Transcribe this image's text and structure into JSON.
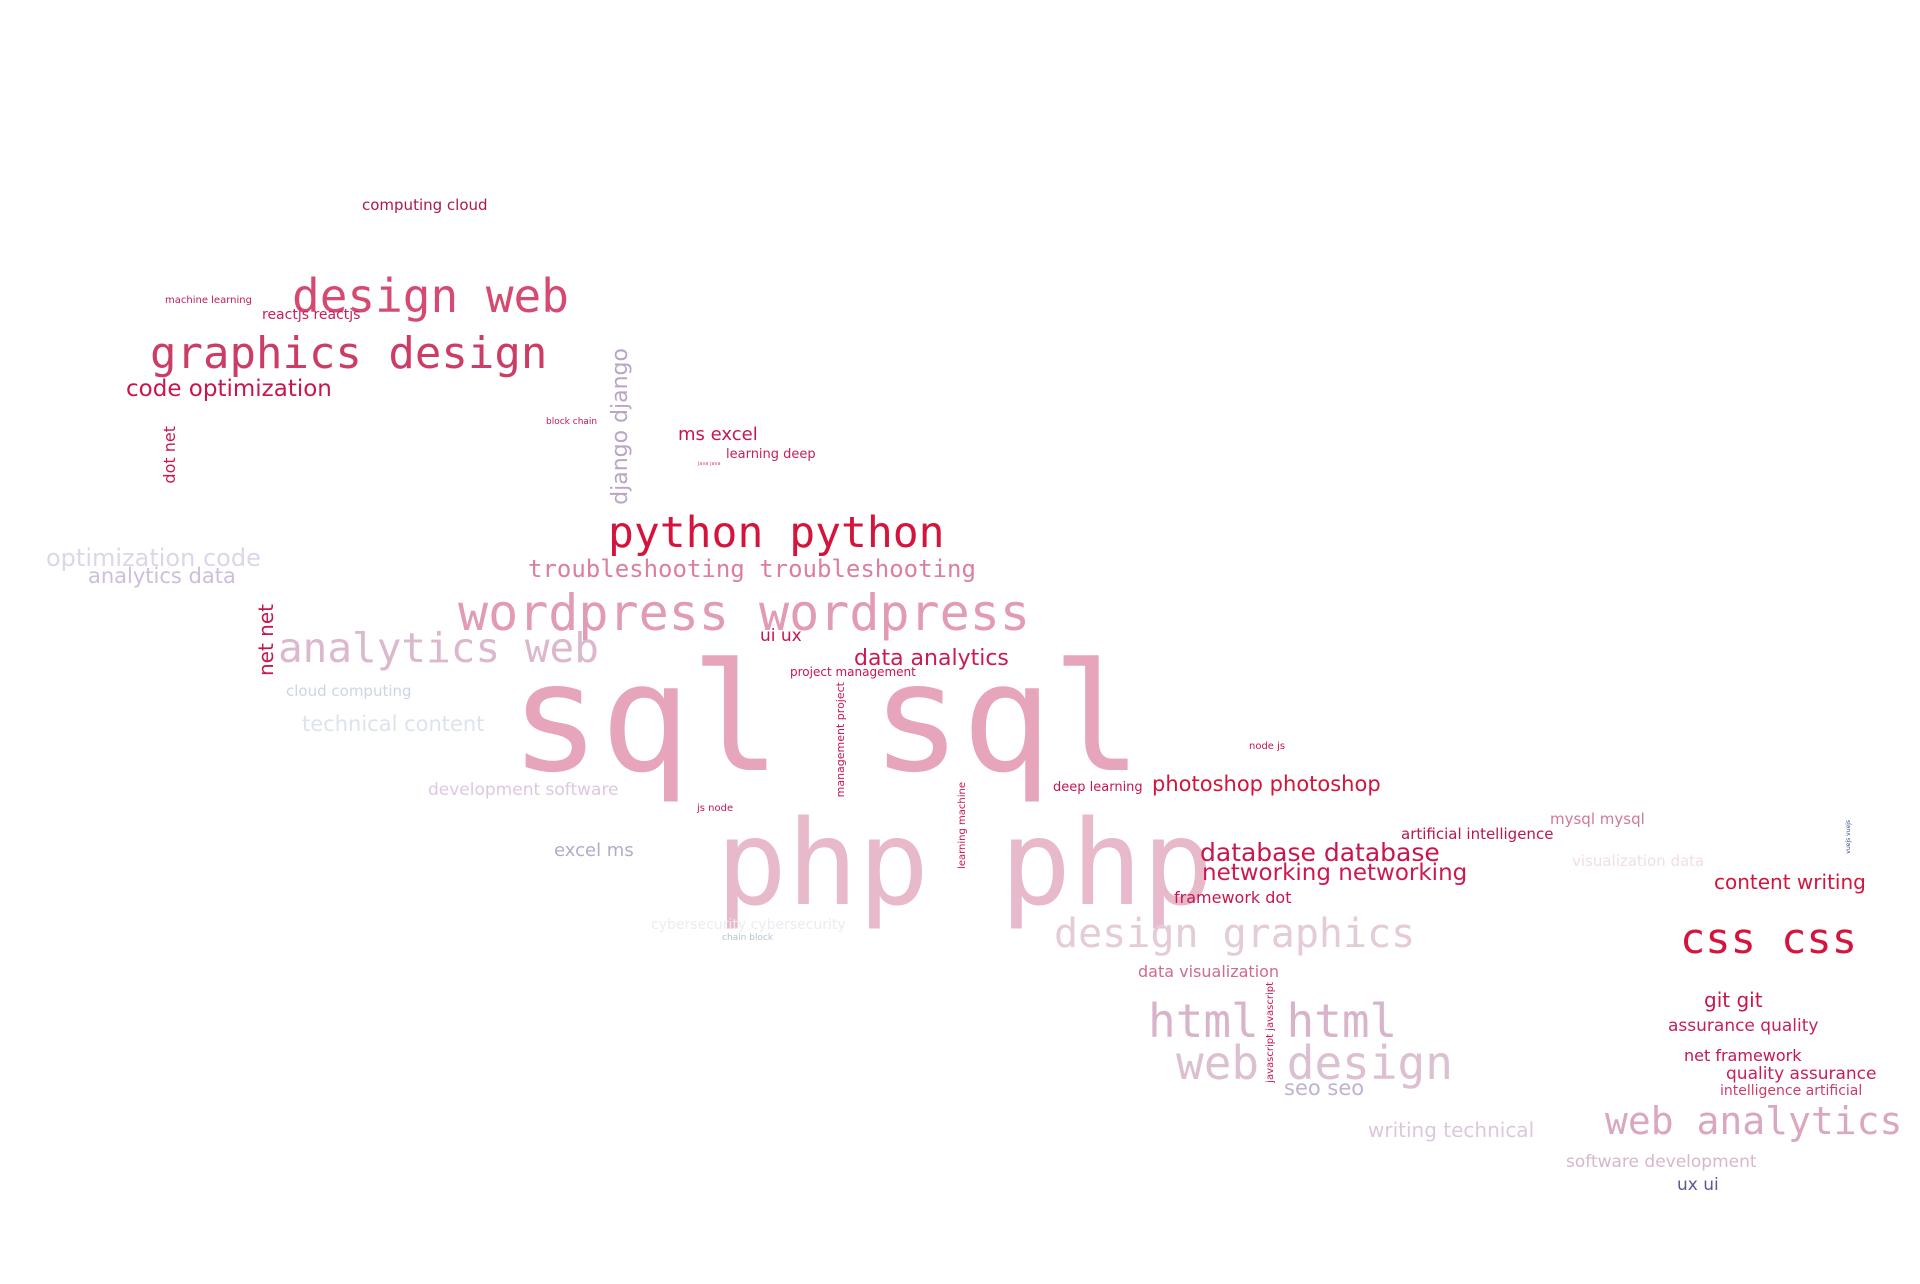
{
  "words": [
    {
      "id": "computing-cloud",
      "text": "computing cloud",
      "color": "#b0164a"
    },
    {
      "id": "machine-learning",
      "text": "machine learning",
      "color": "#c2185b"
    },
    {
      "id": "design-web",
      "text": "design web",
      "color": "#d64a72"
    },
    {
      "id": "reactjs-reactjs",
      "text": "reactjs reactjs",
      "color": "#c81e5a"
    },
    {
      "id": "graphics-design",
      "text": "graphics design",
      "color": "#cc3d66"
    },
    {
      "id": "code-optimization",
      "text": "code optimization",
      "color": "#c8164c"
    },
    {
      "id": "dot-net",
      "text": "dot net",
      "color": "#c8164c"
    },
    {
      "id": "block-chain",
      "text": "block chain",
      "color": "#c8164c"
    },
    {
      "id": "django-django",
      "text": "django django",
      "color": "#b9a5c6"
    },
    {
      "id": "ms-excel",
      "text": "ms excel",
      "color": "#c8164c"
    },
    {
      "id": "learning-deep",
      "text": "learning deep",
      "color": "#c81e5a"
    },
    {
      "id": "java-java",
      "text": "java java",
      "color": "#d64a72"
    },
    {
      "id": "python-python",
      "text": "python python",
      "color": "#d4143c"
    },
    {
      "id": "optimization-code",
      "text": "optimization code",
      "color": "#ddd5ea"
    },
    {
      "id": "analytics-data",
      "text": "analytics data",
      "color": "#cdbedc"
    },
    {
      "id": "troubleshooting-troubleshooting",
      "text": "troubleshooting troubleshooting",
      "color": "#dc7f9c"
    },
    {
      "id": "wordpress-wordpress",
      "text": "wordpress wordpress",
      "color": "#e29bb4"
    },
    {
      "id": "net-net",
      "text": "net net",
      "color": "#c8164c"
    },
    {
      "id": "analytics-web",
      "text": "analytics web",
      "color": "#dcb8cf"
    },
    {
      "id": "ui-ux",
      "text": "ui ux",
      "color": "#c8164c"
    },
    {
      "id": "data-analytics",
      "text": "data analytics",
      "color": "#cc1a50"
    },
    {
      "id": "project-management",
      "text": "project management",
      "color": "#c8164c"
    },
    {
      "id": "cloud-computing",
      "text": "cloud computing",
      "color": "#cad6e6"
    },
    {
      "id": "sql-sql",
      "text": "sql sql",
      "color": "#e6a5ba"
    },
    {
      "id": "management-project",
      "text": "management project",
      "color": "#c8164c"
    },
    {
      "id": "technical-content",
      "text": "technical content",
      "color": "#dde3ee"
    },
    {
      "id": "node-js",
      "text": "node js",
      "color": "#c8164c"
    },
    {
      "id": "development-software",
      "text": "development software",
      "color": "#dcc8e0"
    },
    {
      "id": "deep-learning",
      "text": "deep learning",
      "color": "#c8164c"
    },
    {
      "id": "photoshop-photoshop",
      "text": "photoshop photoshop",
      "color": "#d4143c"
    },
    {
      "id": "learning-machine",
      "text": "learning machine",
      "color": "#c8164c"
    },
    {
      "id": "js-node",
      "text": "js node",
      "color": "#c8164c"
    },
    {
      "id": "php-php",
      "text": "php php",
      "color": "#e8b8cb"
    },
    {
      "id": "mysql-mysql",
      "text": "mysql mysql",
      "color": "#d0789a"
    },
    {
      "id": "artificial-intelligence",
      "text": "artificial intelligence",
      "color": "#b8174c"
    },
    {
      "id": "excel-ms",
      "text": "excel ms",
      "color": "#b5aac8"
    },
    {
      "id": "database-database",
      "text": "database database",
      "color": "#c8164c"
    },
    {
      "id": "visualization-data",
      "text": "visualization data",
      "color": "#f2dde6"
    },
    {
      "id": "vuejs-vuejs",
      "text": "vuejs vuejs",
      "color": "#3a4f8c"
    },
    {
      "id": "networking-networking",
      "text": "networking networking",
      "color": "#cc1a50"
    },
    {
      "id": "content-writing",
      "text": "content writing",
      "color": "#d4143c"
    },
    {
      "id": "framework-dot",
      "text": "framework dot",
      "color": "#c8164c"
    },
    {
      "id": "cybersecurity-cybersecurity",
      "text": "cybersecurity cybersecurity",
      "color": "#eeeaf2"
    },
    {
      "id": "chain-block",
      "text": "chain block",
      "color": "#b5c2d8"
    },
    {
      "id": "design-graphics",
      "text": "design graphics",
      "color": "#e3cbd8"
    },
    {
      "id": "css-css",
      "text": "css css",
      "color": "#d4143c"
    },
    {
      "id": "data-visualization",
      "text": "data visualization",
      "color": "#cf6a90"
    },
    {
      "id": "git-git",
      "text": "git git",
      "color": "#c8164c"
    },
    {
      "id": "javascript-javascript",
      "text": "javascript javascript",
      "color": "#c8164c"
    },
    {
      "id": "assurance-quality",
      "text": "assurance quality",
      "color": "#c81e5a"
    },
    {
      "id": "html-html",
      "text": "html html",
      "color": "#d8b4ca"
    },
    {
      "id": "net-framework",
      "text": "net framework",
      "color": "#c8164c"
    },
    {
      "id": "web-design",
      "text": "web design",
      "color": "#dcc0d2"
    },
    {
      "id": "quality-assurance",
      "text": "quality assurance",
      "color": "#c81e5a"
    },
    {
      "id": "intelligence-artificial",
      "text": "intelligence artificial",
      "color": "#cc3d66"
    },
    {
      "id": "seo-seo",
      "text": "seo seo",
      "color": "#c0b2d0"
    },
    {
      "id": "writing-technical",
      "text": "writing technical",
      "color": "#dcc8dc"
    },
    {
      "id": "web-analytics",
      "text": "web analytics",
      "color": "#d9a7c0"
    },
    {
      "id": "software-development",
      "text": "software development",
      "color": "#d8b6cd"
    },
    {
      "id": "ux-ui",
      "text": "ux ui",
      "color": "#5a5898"
    }
  ]
}
